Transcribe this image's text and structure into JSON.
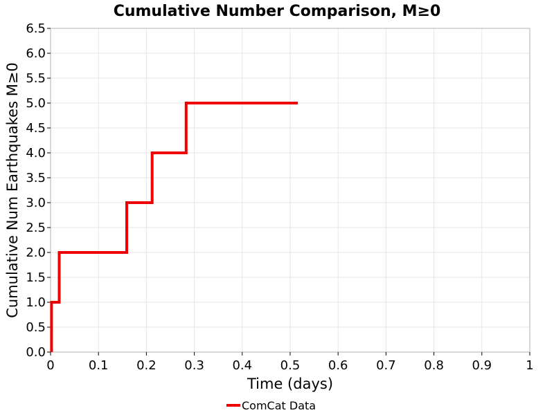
{
  "chart_data": {
    "type": "line",
    "title": "Cumulative Number Comparison, M≥0",
    "xlabel": "Time (days)",
    "ylabel": "Cumulative Num Earthquakes M≥0",
    "xlim": [
      0,
      1
    ],
    "ylim": [
      0,
      6.5
    ],
    "x_ticks": [
      "0",
      "0.1",
      "0.2",
      "0.3",
      "0.4",
      "0.5",
      "0.6",
      "0.7",
      "0.8",
      "0.9",
      "1"
    ],
    "y_ticks": [
      "0.0",
      "0.5",
      "1.0",
      "1.5",
      "2.0",
      "2.5",
      "3.0",
      "3.5",
      "4.0",
      "4.5",
      "5.0",
      "5.5",
      "6.0",
      "6.5"
    ],
    "grid": true,
    "legend_position": "bottom-center",
    "series": [
      {
        "name": "ComCat Data",
        "color": "#ee0000",
        "step": true,
        "x": [
          0.002,
          0.002,
          0.018,
          0.018,
          0.159,
          0.159,
          0.212,
          0.212,
          0.283,
          0.283,
          0.516
        ],
        "y": [
          0,
          1,
          1,
          2,
          2,
          3,
          3,
          4,
          4,
          5,
          5
        ]
      }
    ]
  }
}
